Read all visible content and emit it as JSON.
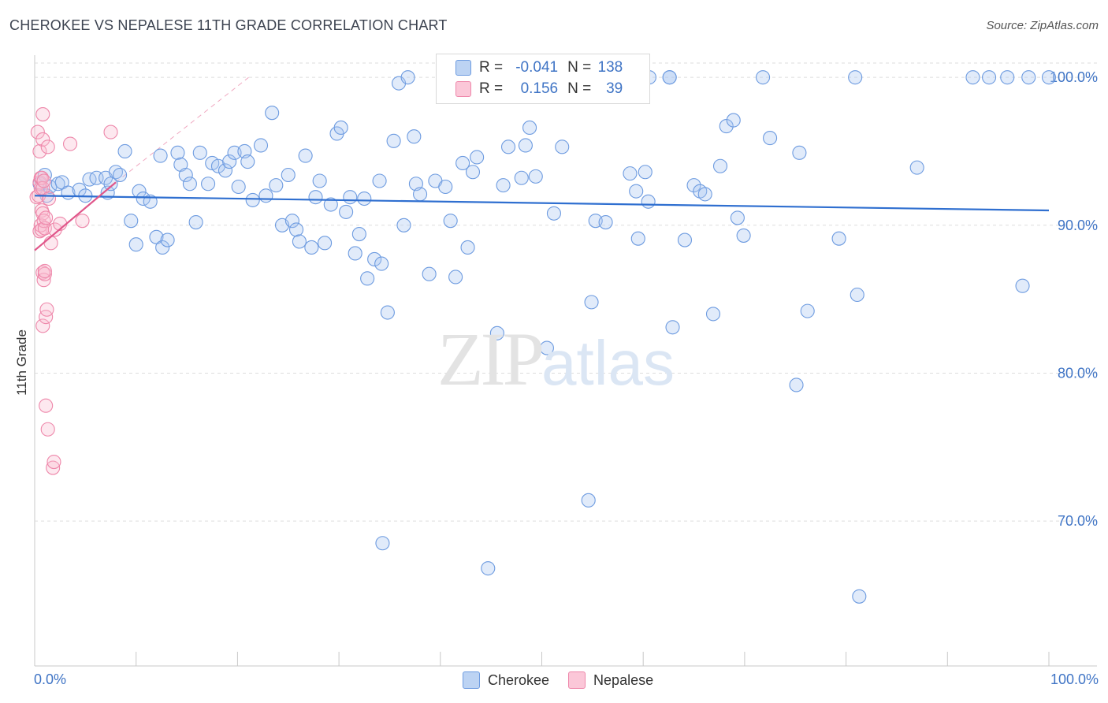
{
  "chart_data": {
    "type": "scatter",
    "title": "CHEROKEE VS NEPALESE 11TH GRADE CORRELATION CHART",
    "source": "Source: ZipAtlas.com",
    "ylabel": "11th Grade",
    "xlabel": "",
    "xlim": [
      0,
      100
    ],
    "ylim": [
      60.2,
      101.5
    ],
    "x_tick_labels": [
      "0.0%",
      "100.0%"
    ],
    "y_ticks": [
      70,
      80,
      90,
      100
    ],
    "y_tick_labels": [
      "70.0%",
      "80.0%",
      "90.0%",
      "100.0%"
    ],
    "watermark": {
      "zip": "ZIP",
      "atlas": "atlas"
    },
    "legend": [
      {
        "name": "Cherokee",
        "r_label": "R =",
        "r": "-0.041",
        "n_label": "N =",
        "n": "138",
        "color": "#6d9be0"
      },
      {
        "name": "Nepalese",
        "r_label": "R =",
        "r": "0.156",
        "n_label": "N =",
        "n": "39",
        "color": "#ee87aa"
      }
    ],
    "series": [
      {
        "name": "Cherokee",
        "color": "#6d9be0",
        "trend": {
          "x": [
            0,
            100
          ],
          "y": [
            92.0,
            91.0
          ]
        },
        "points": [
          [
            0.5,
            92.8
          ],
          [
            1.0,
            93.4
          ],
          [
            1.2,
            92.0
          ],
          [
            1.5,
            92.6
          ],
          [
            2.3,
            92.8
          ],
          [
            2.7,
            92.9
          ],
          [
            3.3,
            92.2
          ],
          [
            4.4,
            92.4
          ],
          [
            5.0,
            92.0
          ],
          [
            5.4,
            93.1
          ],
          [
            6.1,
            93.2
          ],
          [
            7.0,
            93.2
          ],
          [
            7.2,
            92.2
          ],
          [
            7.5,
            92.8
          ],
          [
            8.0,
            93.6
          ],
          [
            8.4,
            93.4
          ],
          [
            8.9,
            95.0
          ],
          [
            9.5,
            90.3
          ],
          [
            10.0,
            88.7
          ],
          [
            10.3,
            92.3
          ],
          [
            10.7,
            91.8
          ],
          [
            11.4,
            91.6
          ],
          [
            12.0,
            89.2
          ],
          [
            12.4,
            94.7
          ],
          [
            12.6,
            88.5
          ],
          [
            13.1,
            89.0
          ],
          [
            14.1,
            94.9
          ],
          [
            14.4,
            94.1
          ],
          [
            14.9,
            93.4
          ],
          [
            15.3,
            92.8
          ],
          [
            15.9,
            90.2
          ],
          [
            16.3,
            94.9
          ],
          [
            17.1,
            92.8
          ],
          [
            17.5,
            94.2
          ],
          [
            18.1,
            94.0
          ],
          [
            18.8,
            93.7
          ],
          [
            19.2,
            94.3
          ],
          [
            19.7,
            94.9
          ],
          [
            20.1,
            92.6
          ],
          [
            20.7,
            95.0
          ],
          [
            21.0,
            94.3
          ],
          [
            21.5,
            91.7
          ],
          [
            22.3,
            95.4
          ],
          [
            22.8,
            92.0
          ],
          [
            23.4,
            97.6
          ],
          [
            23.8,
            92.7
          ],
          [
            24.4,
            90.0
          ],
          [
            25.0,
            93.4
          ],
          [
            25.4,
            90.3
          ],
          [
            25.8,
            89.7
          ],
          [
            26.1,
            88.9
          ],
          [
            26.7,
            94.7
          ],
          [
            27.3,
            88.5
          ],
          [
            27.7,
            91.9
          ],
          [
            28.1,
            93.0
          ],
          [
            28.6,
            88.8
          ],
          [
            29.2,
            91.4
          ],
          [
            29.8,
            96.2
          ],
          [
            30.2,
            96.6
          ],
          [
            30.7,
            90.9
          ],
          [
            31.1,
            91.9
          ],
          [
            31.6,
            88.1
          ],
          [
            32.0,
            89.4
          ],
          [
            32.5,
            91.8
          ],
          [
            32.8,
            86.4
          ],
          [
            33.5,
            87.7
          ],
          [
            34.2,
            87.4
          ],
          [
            34.0,
            93.0
          ],
          [
            34.8,
            84.1
          ],
          [
            35.4,
            95.7
          ],
          [
            35.9,
            99.6
          ],
          [
            36.4,
            90.0
          ],
          [
            37.4,
            96.0
          ],
          [
            37.6,
            92.8
          ],
          [
            38.0,
            92.1
          ],
          [
            38.9,
            86.7
          ],
          [
            39.5,
            93.0
          ],
          [
            40.5,
            92.6
          ],
          [
            41.0,
            90.3
          ],
          [
            41.5,
            86.5
          ],
          [
            42.2,
            94.2
          ],
          [
            42.7,
            88.5
          ],
          [
            43.2,
            93.6
          ],
          [
            43.6,
            94.6
          ],
          [
            44.2,
            99.9
          ],
          [
            45.6,
            82.7
          ],
          [
            46.2,
            92.7
          ],
          [
            46.7,
            95.3
          ],
          [
            47.0,
            100.0
          ],
          [
            48.0,
            93.2
          ],
          [
            48.4,
            95.4
          ],
          [
            48.8,
            96.6
          ],
          [
            49.4,
            93.3
          ],
          [
            50.5,
            81.7
          ],
          [
            51.2,
            90.8
          ],
          [
            52.0,
            95.3
          ],
          [
            52.4,
            100.0
          ],
          [
            52.8,
            100.0
          ],
          [
            54.6,
            71.4
          ],
          [
            54.9,
            84.8
          ],
          [
            55.3,
            90.3
          ],
          [
            56.3,
            90.2
          ],
          [
            58.7,
            93.5
          ],
          [
            59.3,
            92.3
          ],
          [
            59.5,
            89.1
          ],
          [
            60.5,
            91.6
          ],
          [
            60.2,
            93.6
          ],
          [
            62.6,
            100.0
          ],
          [
            62.9,
            83.1
          ],
          [
            64.1,
            89.0
          ],
          [
            65.0,
            92.7
          ],
          [
            65.6,
            92.3
          ],
          [
            66.1,
            92.1
          ],
          [
            66.9,
            84.0
          ],
          [
            67.6,
            94.0
          ],
          [
            68.2,
            96.7
          ],
          [
            68.9,
            97.1
          ],
          [
            69.3,
            90.5
          ],
          [
            69.9,
            89.3
          ],
          [
            71.8,
            100.0
          ],
          [
            72.5,
            95.9
          ],
          [
            75.1,
            79.2
          ],
          [
            75.4,
            94.9
          ],
          [
            76.2,
            84.2
          ],
          [
            79.3,
            89.1
          ],
          [
            80.9,
            100.0
          ],
          [
            81.1,
            85.3
          ],
          [
            81.3,
            64.9
          ],
          [
            87.0,
            93.9
          ],
          [
            92.5,
            100.0
          ],
          [
            94.1,
            100.0
          ],
          [
            95.9,
            100.0
          ],
          [
            97.4,
            85.9
          ],
          [
            98.0,
            100.0
          ],
          [
            100.0,
            100.0
          ],
          [
            60.6,
            100.0
          ],
          [
            36.8,
            100.0
          ],
          [
            34.3,
            68.5
          ],
          [
            44.7,
            66.8
          ],
          [
            62.6,
            100.0
          ]
        ]
      },
      {
        "name": "Nepalese",
        "color": "#ee87aa",
        "trend": {
          "x": [
            0,
            8
          ],
          "y": [
            88.3,
            92.9
          ]
        },
        "trend_ext": {
          "x": [
            8,
            21.1
          ],
          "y": [
            92.9,
            100.0
          ]
        },
        "points": [
          [
            0.2,
            91.9
          ],
          [
            0.3,
            96.3
          ],
          [
            0.4,
            92.0
          ],
          [
            0.5,
            95.0
          ],
          [
            0.5,
            89.6
          ],
          [
            0.5,
            92.9
          ],
          [
            0.6,
            93.2
          ],
          [
            0.6,
            92.5
          ],
          [
            0.6,
            90.0
          ],
          [
            0.7,
            91.0
          ],
          [
            0.7,
            93.2
          ],
          [
            0.7,
            89.7
          ],
          [
            0.8,
            97.5
          ],
          [
            0.8,
            95.8
          ],
          [
            0.8,
            92.5
          ],
          [
            0.8,
            90.8
          ],
          [
            0.8,
            86.8
          ],
          [
            0.8,
            83.2
          ],
          [
            0.9,
            86.3
          ],
          [
            0.9,
            90.3
          ],
          [
            0.9,
            93.0
          ],
          [
            1.0,
            89.8
          ],
          [
            1.0,
            86.7
          ],
          [
            1.0,
            86.9
          ],
          [
            1.1,
            77.8
          ],
          [
            1.1,
            90.5
          ],
          [
            1.1,
            83.8
          ],
          [
            1.2,
            84.3
          ],
          [
            1.3,
            76.2
          ],
          [
            1.3,
            95.3
          ],
          [
            1.4,
            91.8
          ],
          [
            1.6,
            88.8
          ],
          [
            1.8,
            73.6
          ],
          [
            1.9,
            74.0
          ],
          [
            2.0,
            89.7
          ],
          [
            2.5,
            90.1
          ],
          [
            3.5,
            95.5
          ],
          [
            4.7,
            90.3
          ],
          [
            7.5,
            96.3
          ]
        ]
      }
    ]
  }
}
